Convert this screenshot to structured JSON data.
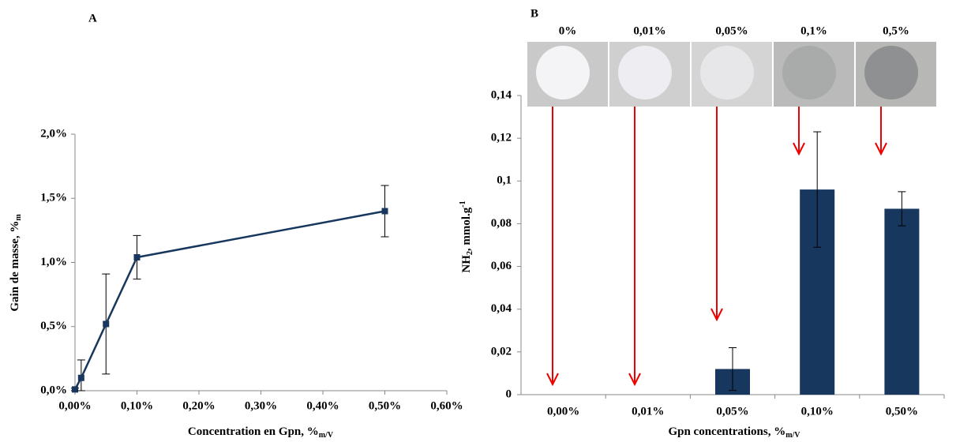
{
  "chart_data": [
    {
      "type": "line",
      "panel": "A",
      "x": [
        0,
        0.01,
        0.05,
        0.1,
        0.5
      ],
      "values": [
        0.01,
        0.1,
        0.52,
        1.04,
        1.4
      ],
      "errors": [
        0.01,
        0.14,
        0.39,
        0.17,
        0.2
      ],
      "color": "#17375e",
      "xlim": [
        0,
        0.6
      ],
      "xticks": [
        {
          "value": 0,
          "label": "0,00%"
        },
        {
          "value": 0.1,
          "label": "0,10%"
        },
        {
          "value": 0.2,
          "label": "0,20%"
        },
        {
          "value": 0.3,
          "label": "0,30%"
        },
        {
          "value": 0.4,
          "label": "0,40%"
        },
        {
          "value": 0.5,
          "label": "0,50%"
        },
        {
          "value": 0.6,
          "label": "0,60%"
        }
      ],
      "ylim": [
        0,
        2
      ],
      "yticks": [
        {
          "value": 0,
          "label": "0,0%"
        },
        {
          "value": 0.5,
          "label": "0,5%"
        },
        {
          "value": 1,
          "label": "1,0%"
        },
        {
          "value": 1.5,
          "label": "1,5%"
        },
        {
          "value": 2,
          "label": "2,0%"
        }
      ],
      "xlabel": "Concentration en Gpn, %",
      "xlabel_sub": "m/V",
      "ylabel": "Gain de masse, %",
      "ylabel_sub": "m"
    },
    {
      "type": "bar",
      "panel": "B",
      "categories": [
        "0,00%",
        "0,01%",
        "0,05%",
        "0,10%",
        "0,50%"
      ],
      "values": [
        0,
        0,
        0.012,
        0.096,
        0.087
      ],
      "errors": [
        null,
        null,
        0.01,
        0.027,
        0.008
      ],
      "color": "#17375e",
      "ylim": [
        0,
        0.14
      ],
      "yticks": [
        0,
        {
          "value": 0.02,
          "label": "0,02"
        },
        {
          "value": 0.04,
          "label": "0,04"
        },
        {
          "value": 0.06,
          "label": "0,06"
        },
        {
          "value": 0.08,
          "label": "0,08"
        },
        {
          "value": 0.1,
          "label": "0,1"
        },
        {
          "value": 0.12,
          "label": "0,12"
        },
        {
          "value": 0.14,
          "label": "0,14"
        }
      ],
      "image_labels": [
        "0%",
        "0,01%",
        "0,05%",
        "0,1%",
        "0,5%"
      ],
      "xlabel": "Gpn concentrations, %",
      "xlabel_sub": "m/V",
      "ylabel": "NH",
      "ylabel_sub": "2",
      "ylabel_rest": ", mmol.g",
      "ylabel_sup": "-1"
    }
  ]
}
